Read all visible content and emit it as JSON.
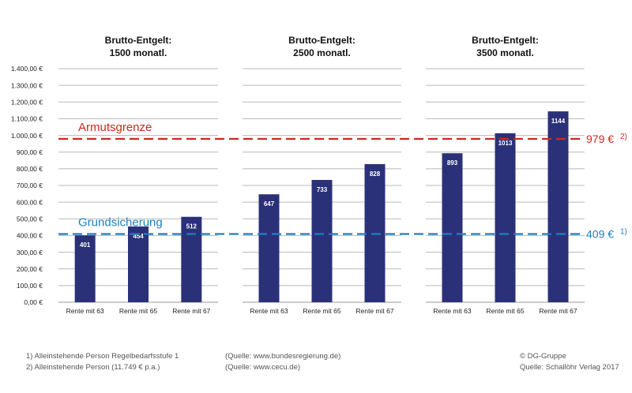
{
  "chart_data": {
    "type": "bar",
    "y_ticks": [
      "0,00 €",
      "100,00 €",
      "200,00 €",
      "300,00 €",
      "400,00 €",
      "500,00 €",
      "600,00 €",
      "700,00 €",
      "800,00 €",
      "900,00 €",
      "1.000,00 €",
      "1.100,00 €",
      "1.200,00 €",
      "1.300,00 €",
      "1.400,00 €"
    ],
    "ylim": [
      0,
      1400
    ],
    "grid": true,
    "bar_color": "#2b3178",
    "panels": [
      {
        "title_line1": "Brutto-Entgelt:",
        "title_line2": "1500 monatl.",
        "categories": [
          "Rente mit 63",
          "Rente mit 65",
          "Rente mit 67"
        ],
        "values": [
          401,
          454,
          512
        ]
      },
      {
        "title_line1": "Brutto-Entgelt:",
        "title_line2": "2500 monatl.",
        "categories": [
          "Rente mit 63",
          "Rente mit 65",
          "Rente mit 67"
        ],
        "values": [
          647,
          733,
          828
        ]
      },
      {
        "title_line1": "Brutto-Entgelt:",
        "title_line2": "3500 monatl.",
        "categories": [
          "Rente mit 63",
          "Rente mit 65",
          "Rente mit 67"
        ],
        "values": [
          893,
          1013,
          1144
        ]
      }
    ],
    "reference_lines": [
      {
        "id": "armut",
        "name": "Armutsgrenze",
        "value": 979,
        "value_label": "979 €",
        "note": "2)",
        "color": "#cc2a1e"
      },
      {
        "id": "grund",
        "name": "Grundsicherung",
        "value": 409,
        "value_label": "409 €",
        "note": "1)",
        "color": "#1f7fc0"
      }
    ]
  },
  "footnotes": {
    "left": [
      "1) Alleinstehende Person Regelbedarfsstufe 1",
      "2) Alleinstehende Person (11.749 € p.a.)"
    ],
    "sources": [
      "(Quelle: www.bundesregierung.de)",
      "(Quelle: www.cecu.de)"
    ],
    "right": [
      "© DG-Gruppe",
      "Quelle: Schallöhr Verlag 2017"
    ]
  }
}
